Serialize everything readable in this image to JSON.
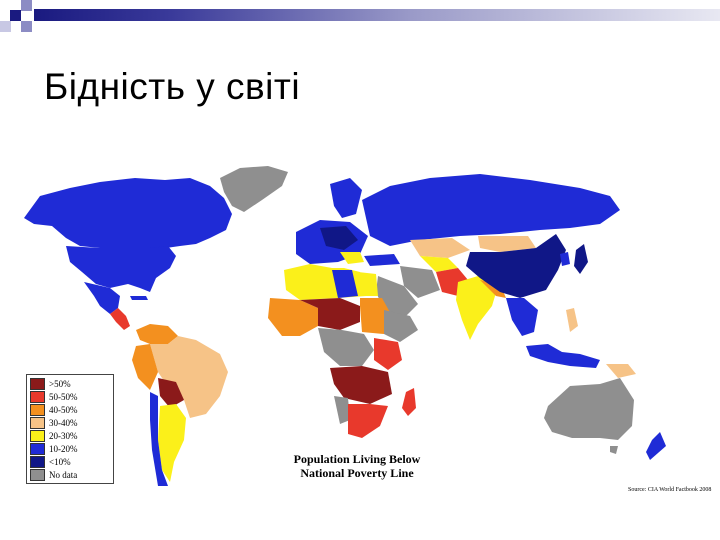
{
  "slide": {
    "title": "Бідність у світі"
  },
  "map": {
    "title_line1": "Population Living Below",
    "title_line2": "National Poverty Line",
    "source": "Source: CIA World Factbook 2008",
    "legend": [
      {
        "label": ">50%",
        "color": "#8b1a1a"
      },
      {
        "label": "50-50%",
        "color": "#e8392c"
      },
      {
        "label": "40-50%",
        "color": "#f3901f"
      },
      {
        "label": "30-40%",
        "color": "#f6c387"
      },
      {
        "label": "20-30%",
        "color": "#fbf01a"
      },
      {
        "label": "10-20%",
        "color": "#1f2bd6"
      },
      {
        "label": "<10%",
        "color": "#101787"
      },
      {
        "label": "No data",
        "color": "#8f8f8f"
      }
    ]
  }
}
